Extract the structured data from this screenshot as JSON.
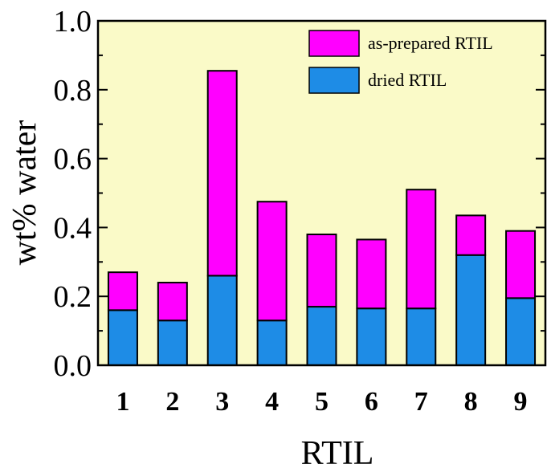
{
  "chart_data": {
    "type": "bar",
    "stacked": true,
    "xlabel": "RTIL",
    "ylabel": "wt% water",
    "ylim": [
      0.0,
      1.0
    ],
    "yticks": [
      "0.0",
      "0.2",
      "0.4",
      "0.6",
      "0.8",
      "1.0"
    ],
    "categories": [
      "1",
      "2",
      "3",
      "4",
      "5",
      "6",
      "7",
      "8",
      "9"
    ],
    "series": [
      {
        "name": "dried RTIL",
        "color": "#1e8ce6",
        "values": [
          0.16,
          0.13,
          0.26,
          0.13,
          0.17,
          0.165,
          0.165,
          0.32,
          0.195
        ]
      },
      {
        "name": "as-prepared RTIL",
        "color": "#ff00ff",
        "values": [
          0.11,
          0.11,
          0.595,
          0.345,
          0.21,
          0.2,
          0.345,
          0.115,
          0.195
        ]
      }
    ],
    "totals": [
      0.27,
      0.24,
      0.855,
      0.475,
      0.38,
      0.365,
      0.51,
      0.435,
      0.39
    ],
    "legend_position": "top-right",
    "plot_background": "#fafac8",
    "grid": false
  }
}
